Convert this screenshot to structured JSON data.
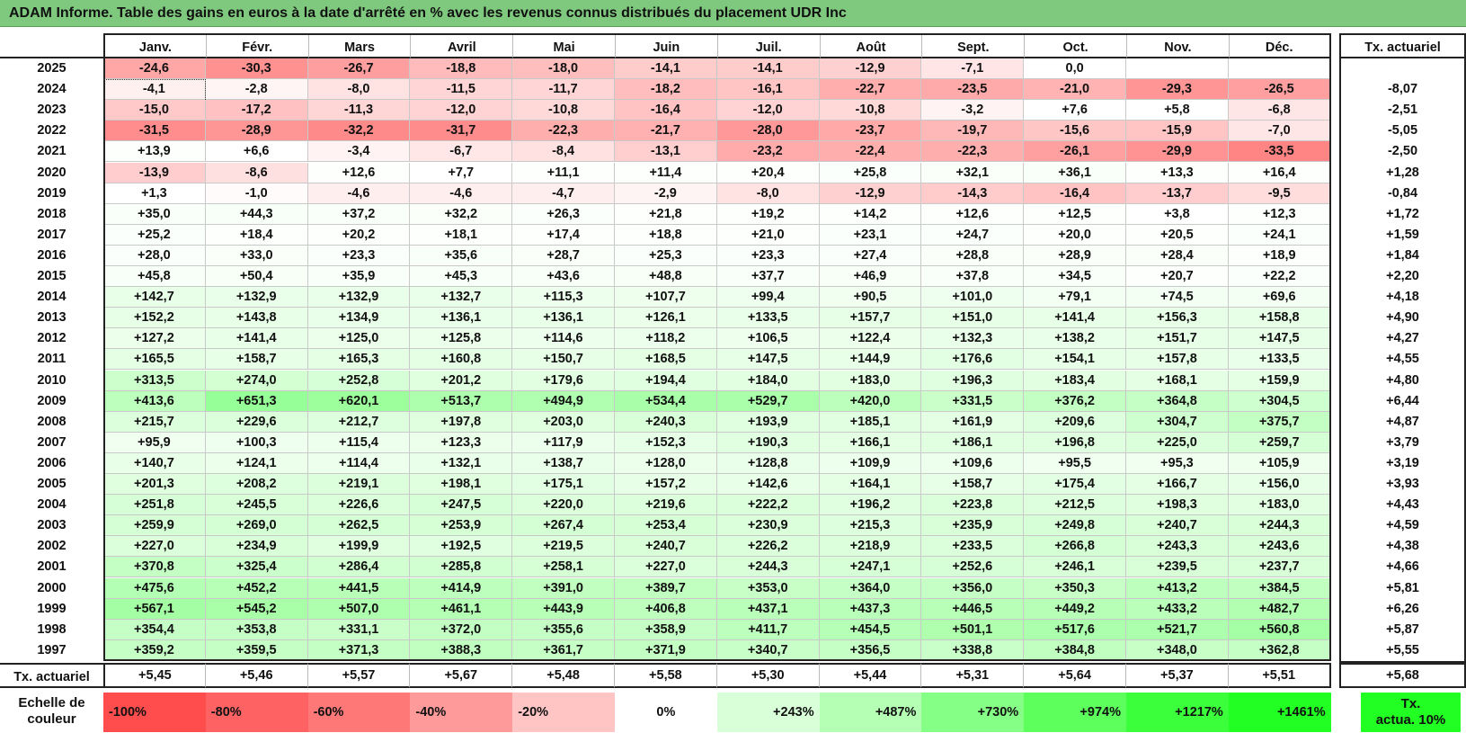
{
  "title": "ADAM Informe. Table des gains en euros à la date d'arrêté en % avec les revenus connus distribués du placement UDR Inc",
  "months": [
    "Janv.",
    "Févr.",
    "Mars",
    "Avril",
    "Mai",
    "Juin",
    "Juil.",
    "Août",
    "Sept.",
    "Oct.",
    "Nov.",
    "Déc."
  ],
  "rate_header": "Tx. actuariel",
  "rows": [
    {
      "year": "2025",
      "values": [
        "-24,6",
        "-30,3",
        "-26,7",
        "-18,8",
        "-18,0",
        "-14,1",
        "-14,1",
        "-12,9",
        "-7,1",
        "0,0",
        "",
        ""
      ],
      "rate": ""
    },
    {
      "year": "2024",
      "values": [
        "-4,1",
        "-2,8",
        "-8,0",
        "-11,5",
        "-11,7",
        "-18,2",
        "-16,1",
        "-22,7",
        "-23,5",
        "-21,0",
        "-29,3",
        "-26,5"
      ],
      "rate": "-8,07"
    },
    {
      "year": "2023",
      "values": [
        "-15,0",
        "-17,2",
        "-11,3",
        "-12,0",
        "-10,8",
        "-16,4",
        "-12,0",
        "-10,8",
        "-3,2",
        "+7,6",
        "+5,8",
        "-6,8"
      ],
      "rate": "-2,51"
    },
    {
      "year": "2022",
      "values": [
        "-31,5",
        "-28,9",
        "-32,2",
        "-31,7",
        "-22,3",
        "-21,7",
        "-28,0",
        "-23,7",
        "-19,7",
        "-15,6",
        "-15,9",
        "-7,0"
      ],
      "rate": "-5,05"
    },
    {
      "year": "2021",
      "values": [
        "+13,9",
        "+6,6",
        "-3,4",
        "-6,7",
        "-8,4",
        "-13,1",
        "-23,2",
        "-22,4",
        "-22,3",
        "-26,1",
        "-29,9",
        "-33,5"
      ],
      "rate": "-2,50"
    },
    {
      "year": "2020",
      "values": [
        "-13,9",
        "-8,6",
        "+12,6",
        "+7,7",
        "+11,1",
        "+11,4",
        "+20,4",
        "+25,8",
        "+32,1",
        "+36,1",
        "+13,3",
        "+16,4"
      ],
      "rate": "+1,28"
    },
    {
      "year": "2019",
      "values": [
        "+1,3",
        "-1,0",
        "-4,6",
        "-4,6",
        "-4,7",
        "-2,9",
        "-8,0",
        "-12,9",
        "-14,3",
        "-16,4",
        "-13,7",
        "-9,5"
      ],
      "rate": "-0,84"
    },
    {
      "year": "2018",
      "values": [
        "+35,0",
        "+44,3",
        "+37,2",
        "+32,2",
        "+26,3",
        "+21,8",
        "+19,2",
        "+14,2",
        "+12,6",
        "+12,5",
        "+3,8",
        "+12,3"
      ],
      "rate": "+1,72"
    },
    {
      "year": "2017",
      "values": [
        "+25,2",
        "+18,4",
        "+20,2",
        "+18,1",
        "+17,4",
        "+18,8",
        "+21,0",
        "+23,1",
        "+24,7",
        "+20,0",
        "+20,5",
        "+24,1"
      ],
      "rate": "+1,59"
    },
    {
      "year": "2016",
      "values": [
        "+28,0",
        "+33,0",
        "+23,3",
        "+35,6",
        "+28,7",
        "+25,3",
        "+23,3",
        "+27,4",
        "+28,8",
        "+28,9",
        "+28,4",
        "+18,9"
      ],
      "rate": "+1,84"
    },
    {
      "year": "2015",
      "values": [
        "+45,8",
        "+50,4",
        "+35,9",
        "+45,3",
        "+43,6",
        "+48,8",
        "+37,7",
        "+46,9",
        "+37,8",
        "+34,5",
        "+20,7",
        "+22,2"
      ],
      "rate": "+2,20"
    },
    {
      "year": "2014",
      "values": [
        "+142,7",
        "+132,9",
        "+132,9",
        "+132,7",
        "+115,3",
        "+107,7",
        "+99,4",
        "+90,5",
        "+101,0",
        "+79,1",
        "+74,5",
        "+69,6"
      ],
      "rate": "+4,18"
    },
    {
      "year": "2013",
      "values": [
        "+152,2",
        "+143,8",
        "+134,9",
        "+136,1",
        "+136,1",
        "+126,1",
        "+133,5",
        "+157,7",
        "+151,0",
        "+141,4",
        "+156,3",
        "+158,8"
      ],
      "rate": "+4,90"
    },
    {
      "year": "2012",
      "values": [
        "+127,2",
        "+141,4",
        "+125,0",
        "+125,8",
        "+114,6",
        "+118,2",
        "+106,5",
        "+122,4",
        "+132,3",
        "+138,2",
        "+151,7",
        "+147,5"
      ],
      "rate": "+4,27"
    },
    {
      "year": "2011",
      "values": [
        "+165,5",
        "+158,7",
        "+165,3",
        "+160,8",
        "+150,7",
        "+168,5",
        "+147,5",
        "+144,9",
        "+176,6",
        "+154,1",
        "+157,8",
        "+133,5"
      ],
      "rate": "+4,55"
    },
    {
      "year": "2010",
      "values": [
        "+313,5",
        "+274,0",
        "+252,8",
        "+201,2",
        "+179,6",
        "+194,4",
        "+184,0",
        "+183,0",
        "+196,3",
        "+183,4",
        "+168,1",
        "+159,9"
      ],
      "rate": "+4,80"
    },
    {
      "year": "2009",
      "values": [
        "+413,6",
        "+651,3",
        "+620,1",
        "+513,7",
        "+494,9",
        "+534,4",
        "+529,7",
        "+420,0",
        "+331,5",
        "+376,2",
        "+364,8",
        "+304,5"
      ],
      "rate": "+6,44"
    },
    {
      "year": "2008",
      "values": [
        "+215,7",
        "+229,6",
        "+212,7",
        "+197,8",
        "+203,0",
        "+240,3",
        "+193,9",
        "+185,1",
        "+161,9",
        "+209,6",
        "+304,7",
        "+375,7"
      ],
      "rate": "+4,87"
    },
    {
      "year": "2007",
      "values": [
        "+95,9",
        "+100,3",
        "+115,4",
        "+123,3",
        "+117,9",
        "+152,3",
        "+190,3",
        "+166,1",
        "+186,1",
        "+196,8",
        "+225,0",
        "+259,7"
      ],
      "rate": "+3,79"
    },
    {
      "year": "2006",
      "values": [
        "+140,7",
        "+124,1",
        "+114,4",
        "+132,1",
        "+138,7",
        "+128,0",
        "+128,8",
        "+109,9",
        "+109,6",
        "+95,5",
        "+95,3",
        "+105,9"
      ],
      "rate": "+3,19"
    },
    {
      "year": "2005",
      "values": [
        "+201,3",
        "+208,2",
        "+219,1",
        "+198,1",
        "+175,1",
        "+157,2",
        "+142,6",
        "+164,1",
        "+158,7",
        "+175,4",
        "+166,7",
        "+156,0"
      ],
      "rate": "+3,93"
    },
    {
      "year": "2004",
      "values": [
        "+251,8",
        "+245,5",
        "+226,6",
        "+247,5",
        "+220,0",
        "+219,6",
        "+222,2",
        "+196,2",
        "+223,8",
        "+212,5",
        "+198,3",
        "+183,0"
      ],
      "rate": "+4,43"
    },
    {
      "year": "2003",
      "values": [
        "+259,9",
        "+269,0",
        "+262,5",
        "+253,9",
        "+267,4",
        "+253,4",
        "+230,9",
        "+215,3",
        "+235,9",
        "+249,8",
        "+240,7",
        "+244,3"
      ],
      "rate": "+4,59"
    },
    {
      "year": "2002",
      "values": [
        "+227,0",
        "+234,9",
        "+199,9",
        "+192,5",
        "+219,5",
        "+240,7",
        "+226,2",
        "+218,9",
        "+233,5",
        "+266,8",
        "+243,3",
        "+243,6"
      ],
      "rate": "+4,38"
    },
    {
      "year": "2001",
      "values": [
        "+370,8",
        "+325,4",
        "+286,4",
        "+285,8",
        "+258,1",
        "+227,0",
        "+244,3",
        "+247,1",
        "+252,6",
        "+246,1",
        "+239,5",
        "+237,7"
      ],
      "rate": "+4,66"
    },
    {
      "year": "2000",
      "values": [
        "+475,6",
        "+452,2",
        "+441,5",
        "+414,9",
        "+391,0",
        "+389,7",
        "+353,0",
        "+364,0",
        "+356,0",
        "+350,3",
        "+413,2",
        "+384,5"
      ],
      "rate": "+5,81"
    },
    {
      "year": "1999",
      "values": [
        "+567,1",
        "+545,2",
        "+507,0",
        "+461,1",
        "+443,9",
        "+406,8",
        "+437,1",
        "+437,3",
        "+446,5",
        "+449,2",
        "+433,2",
        "+482,7"
      ],
      "rate": "+6,26"
    },
    {
      "year": "1998",
      "values": [
        "+354,4",
        "+353,8",
        "+331,1",
        "+372,0",
        "+355,6",
        "+358,9",
        "+411,7",
        "+454,5",
        "+501,1",
        "+517,6",
        "+521,7",
        "+560,8"
      ],
      "rate": "+5,87"
    },
    {
      "year": "1997",
      "values": [
        "+359,2",
        "+359,5",
        "+371,3",
        "+388,3",
        "+361,7",
        "+371,9",
        "+340,7",
        "+356,5",
        "+338,8",
        "+384,8",
        "+348,0",
        "+362,8"
      ],
      "rate": "+5,55"
    }
  ],
  "footer": {
    "label": "Tx. actuariel",
    "values": [
      "+5,45",
      "+5,46",
      "+5,57",
      "+5,67",
      "+5,48",
      "+5,58",
      "+5,30",
      "+5,44",
      "+5,31",
      "+5,64",
      "+5,37",
      "+5,51"
    ],
    "rate": "+5,68"
  },
  "legend": {
    "label_line1": "Echelle de",
    "label_line2": "couleur",
    "swatches": [
      {
        "text": "-100%",
        "color": "#ff4d4d",
        "align": "left"
      },
      {
        "text": "-80%",
        "color": "#ff6262",
        "align": "left"
      },
      {
        "text": "-60%",
        "color": "#ff7878",
        "align": "left"
      },
      {
        "text": "-40%",
        "color": "#ff9a9a",
        "align": "left"
      },
      {
        "text": "-20%",
        "color": "#ffc4c4",
        "align": "left"
      },
      {
        "text": "0%",
        "color": "#ffffff",
        "align": "center"
      },
      {
        "text": "+243%",
        "color": "#d9ffd9",
        "align": "right"
      },
      {
        "text": "+487%",
        "color": "#b5ffb5",
        "align": "right"
      },
      {
        "text": "+730%",
        "color": "#86ff86",
        "align": "right"
      },
      {
        "text": "+974%",
        "color": "#5cff5c",
        "align": "right"
      },
      {
        "text": "+1217%",
        "color": "#3cff3c",
        "align": "right"
      },
      {
        "text": "+1461%",
        "color": "#22ff22",
        "align": "right"
      }
    ],
    "rate_line1": "Tx.",
    "rate_line2": "actua. 10%",
    "rate_color": "#22ff22"
  }
}
